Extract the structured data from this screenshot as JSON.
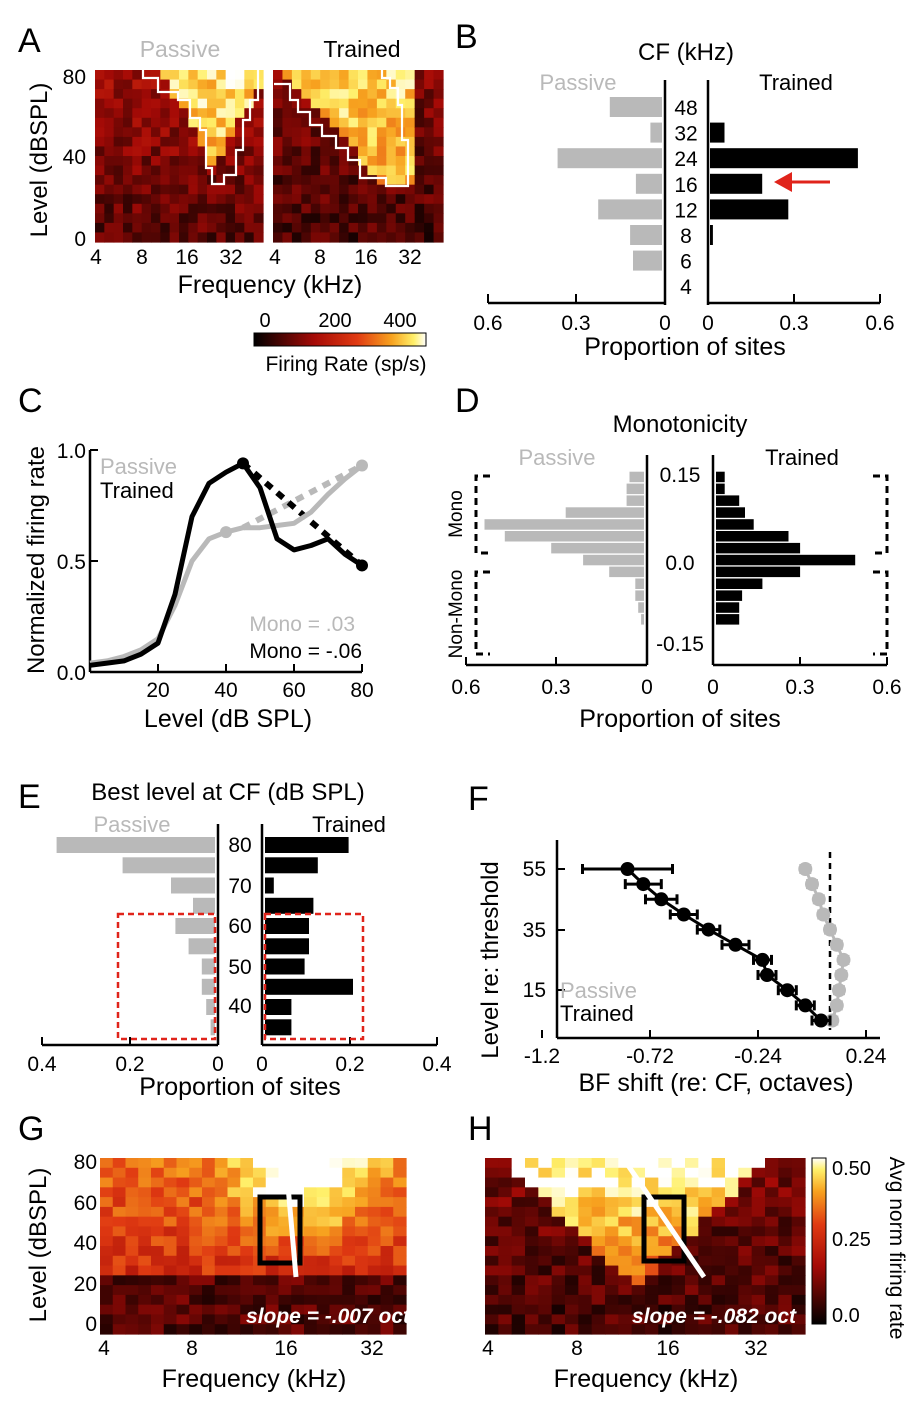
{
  "colors": {
    "passive": "#b9b9b9",
    "trained": "#000000",
    "highlight": "#e0241b"
  },
  "panelA": {
    "letter": "A",
    "title_passive": "Passive",
    "title_trained": "Trained",
    "ylabel": "Level (dBSPL)",
    "yticks": [
      "80",
      "40",
      "0"
    ],
    "xticks": [
      "4",
      "8",
      "16",
      "32"
    ],
    "xlabel": "Frequency (kHz)",
    "colorbar_ticks": [
      "0",
      "200",
      "400"
    ],
    "colorbar_label": "Firing Rate (sp/s)"
  },
  "panelB": {
    "letter": "B",
    "title": "CF (kHz)",
    "label_passive": "Passive",
    "label_trained": "Trained",
    "categories": [
      "48",
      "32",
      "24",
      "16",
      "12",
      "8",
      "6",
      "4"
    ],
    "xticks_left": [
      "0.6",
      "0.3",
      "0"
    ],
    "xticks_right": [
      "0",
      "0.3",
      "0.6"
    ],
    "xlabel": "Proportion of sites"
  },
  "panelC": {
    "letter": "C",
    "ylabel": "Normalized firing rate",
    "xlabel": "Level (dB SPL)",
    "yticks": [
      "1.0",
      "0.5",
      "0.0"
    ],
    "xticks": [
      "20",
      "40",
      "60",
      "80"
    ],
    "legend_passive": "Passive",
    "legend_trained": "Trained",
    "mono_passive": "Mono = .03",
    "mono_trained": "Mono = -.06"
  },
  "panelD": {
    "letter": "D",
    "title": "Monotonicity",
    "label_passive": "Passive",
    "label_trained": "Trained",
    "yticks": [
      "0.15",
      "0.0",
      "-0.15"
    ],
    "xticks_left": [
      "0.6",
      "0.3",
      "0"
    ],
    "xticks_right": [
      "0",
      "0.3",
      "0.6"
    ],
    "xlabel": "Proportion of sites",
    "bracket_mono": "Mono",
    "bracket_nonmono": "Non-Mono"
  },
  "panelE": {
    "letter": "E",
    "title": "Best level at CF (dB SPL)",
    "label_passive": "Passive",
    "label_trained": "Trained",
    "ytick_labels": [
      "80",
      "70",
      "60",
      "50",
      "40"
    ],
    "xticks_left": [
      "0.4",
      "0.2",
      "0"
    ],
    "xticks_right": [
      "0",
      "0.2",
      "0.4"
    ],
    "xlabel": "Proportion of sites"
  },
  "panelF": {
    "letter": "F",
    "ylabel": "Level  re: threshold",
    "xlabel": "BF shift (re: CF, octaves)",
    "yticks": [
      "55",
      "35",
      "15"
    ],
    "xticks": [
      "-1.2",
      "-0.72",
      "-0.24",
      "0.24"
    ],
    "legend_passive": "Passive",
    "legend_trained": "Trained"
  },
  "panelG": {
    "letter": "G",
    "ylabel": "Level (dBSPL)",
    "yticks": [
      "80",
      "60",
      "40",
      "20",
      "0"
    ],
    "xticks": [
      "4",
      "8",
      "16",
      "32"
    ],
    "xlabel": "Frequency (kHz)",
    "slope_text": "slope = -.007 oct"
  },
  "panelH": {
    "letter": "H",
    "xticks": [
      "4",
      "8",
      "16",
      "32"
    ],
    "xlabel": "Frequency (kHz)",
    "slope_text": "slope = -.082 oct",
    "colorbar_ticks": [
      "0.50",
      "0.25",
      "0.0"
    ],
    "colorbar_label": "Avg norm firing rate"
  },
  "chart_data": [
    {
      "type": "heatmap",
      "panel": "A",
      "titles": [
        "Passive",
        "Trained"
      ],
      "ylabel": "Level (dBSPL)",
      "xlabel": "Frequency (kHz)",
      "x_ticks": [
        "4",
        "8",
        "16",
        "32"
      ],
      "y_ticks": [
        "0",
        "40",
        "80"
      ],
      "colorbar": {
        "label": "Firing Rate (sp/s)",
        "range": [
          0,
          400
        ],
        "colormap": "hot"
      }
    },
    {
      "type": "bar",
      "panel": "B",
      "orientation": "horizontal",
      "title": "CF (kHz)",
      "categories": [
        "48",
        "32",
        "24",
        "16",
        "12",
        "8",
        "6",
        "4"
      ],
      "series": [
        {
          "name": "Passive",
          "values": [
            0.18,
            0.04,
            0.36,
            0.09,
            0.22,
            0.11,
            0.1,
            0.0
          ]
        },
        {
          "name": "Trained",
          "values": [
            0.0,
            0.05,
            0.51,
            0.18,
            0.27,
            0.01,
            0.0,
            0.0
          ]
        }
      ],
      "xlabel": "Proportion of sites",
      "xlim": [
        0,
        0.6
      ],
      "annotation": "red arrow at 16 kHz (Trained)"
    },
    {
      "type": "line",
      "panel": "C",
      "xlabel": "Level (dB SPL)",
      "ylabel": "Normalized firing rate",
      "xlim": [
        0,
        80
      ],
      "ylim": [
        0,
        1
      ],
      "series": [
        {
          "name": "Passive",
          "x": [
            0,
            5,
            10,
            15,
            20,
            25,
            30,
            35,
            40,
            45,
            50,
            55,
            60,
            65,
            70,
            75,
            80
          ],
          "y": [
            0.04,
            0.05,
            0.07,
            0.1,
            0.15,
            0.3,
            0.5,
            0.6,
            0.63,
            0.65,
            0.65,
            0.66,
            0.67,
            0.72,
            0.8,
            0.87,
            0.93
          ],
          "marker_x": [
            40,
            80
          ],
          "fit_line": {
            "x": [
              45,
              80
            ],
            "y": [
              0.65,
              0.93
            ]
          },
          "mono": 0.03
        },
        {
          "name": "Trained",
          "x": [
            0,
            5,
            10,
            15,
            20,
            25,
            30,
            35,
            40,
            45,
            50,
            55,
            60,
            65,
            70,
            75,
            80
          ],
          "y": [
            0.03,
            0.04,
            0.05,
            0.08,
            0.13,
            0.35,
            0.7,
            0.85,
            0.9,
            0.94,
            0.83,
            0.6,
            0.55,
            0.57,
            0.6,
            0.53,
            0.48
          ],
          "marker_x": [
            45,
            80
          ],
          "fit_line": {
            "x": [
              45,
              80
            ],
            "y": [
              0.94,
              0.48
            ]
          },
          "mono": -0.06
        }
      ],
      "annotations": [
        "Mono = .03",
        "Mono = -.06"
      ]
    },
    {
      "type": "bar",
      "panel": "D",
      "orientation": "horizontal",
      "title": "Monotonicity",
      "bins": [
        0.165,
        0.145,
        0.125,
        0.105,
        0.085,
        0.065,
        0.045,
        0.025,
        0.005,
        -0.015,
        -0.035,
        -0.055,
        -0.075,
        -0.095,
        -0.115,
        -0.135,
        -0.155
      ],
      "series": [
        {
          "name": "Passive",
          "values": [
            0.0,
            0.05,
            0.06,
            0.06,
            0.27,
            0.55,
            0.48,
            0.32,
            0.21,
            0.12,
            0.03,
            0.03,
            0.02,
            0.01,
            0.0,
            0.0,
            0.0
          ]
        },
        {
          "name": "Trained",
          "values": [
            0.0,
            0.03,
            0.03,
            0.08,
            0.1,
            0.13,
            0.25,
            0.29,
            0.48,
            0.29,
            0.16,
            0.09,
            0.08,
            0.08,
            0.0,
            0.0,
            0.0
          ]
        }
      ],
      "ylim": [
        -0.15,
        0.15
      ],
      "xlabel": "Proportion of sites",
      "xlim": [
        0,
        0.6
      ],
      "brackets": [
        "Mono",
        "Non-Mono"
      ]
    },
    {
      "type": "bar",
      "panel": "E",
      "orientation": "horizontal",
      "title": "Best level at CF (dB SPL)",
      "categories": [
        80,
        75,
        70,
        65,
        60,
        55,
        50,
        45,
        40,
        35
      ],
      "series": [
        {
          "name": "Passive",
          "values": [
            0.36,
            0.21,
            0.1,
            0.05,
            0.09,
            0.06,
            0.03,
            0.03,
            0.02,
            0.01
          ]
        },
        {
          "name": "Trained",
          "values": [
            0.19,
            0.12,
            0.02,
            0.11,
            0.1,
            0.1,
            0.09,
            0.2,
            0.06,
            0.06
          ]
        }
      ],
      "xlabel": "Proportion of sites",
      "xlim": [
        0,
        0.4
      ],
      "highlight_box": "red dashed, 35–60 dB SPL"
    },
    {
      "type": "line",
      "panel": "F",
      "xlabel": "BF shift (re: CF, octaves)",
      "ylabel": "Level  re: threshold",
      "xlim": [
        -1.2,
        0.24
      ],
      "reference_line_x": 0,
      "series": [
        {
          "name": "Trained",
          "y": [
            55,
            50,
            45,
            40,
            35,
            30,
            25,
            20,
            15,
            10,
            5
          ],
          "x": [
            -0.9,
            -0.83,
            -0.75,
            -0.65,
            -0.54,
            -0.42,
            -0.3,
            -0.28,
            -0.19,
            -0.11,
            -0.04
          ],
          "xerr": [
            0.2,
            0.08,
            0.07,
            0.06,
            0.05,
            0.06,
            0.04,
            0.04,
            0.04,
            0.04,
            0.04
          ]
        },
        {
          "name": "Passive",
          "y": [
            55,
            50,
            45,
            40,
            35,
            30,
            25,
            20,
            15,
            10,
            5
          ],
          "x": [
            -0.11,
            -0.08,
            -0.05,
            -0.03,
            0.0,
            0.03,
            0.06,
            0.05,
            0.04,
            0.03,
            0.01
          ],
          "xerr": [
            0.02,
            0.02,
            0.02,
            0.02,
            0.02,
            0.02,
            0.02,
            0.02,
            0.02,
            0.02,
            0.02
          ]
        }
      ]
    },
    {
      "type": "heatmap",
      "panel": "G",
      "ylabel": "Level (dBSPL)",
      "xlabel": "Frequency (kHz)",
      "x_ticks": [
        "4",
        "8",
        "16",
        "32"
      ],
      "y_ticks": [
        "0",
        "20",
        "40",
        "60",
        "80"
      ],
      "annotation": "slope = -.007 oct"
    },
    {
      "type": "heatmap",
      "panel": "H",
      "xlabel": "Frequency (kHz)",
      "x_ticks": [
        "4",
        "8",
        "16",
        "32"
      ],
      "annotation": "slope = -.082 oct",
      "colorbar": {
        "label": "Avg norm firing rate",
        "range": [
          0,
          0.5
        ],
        "ticks": [
          "0.0",
          "0.25",
          "0.50"
        ]
      }
    }
  ]
}
